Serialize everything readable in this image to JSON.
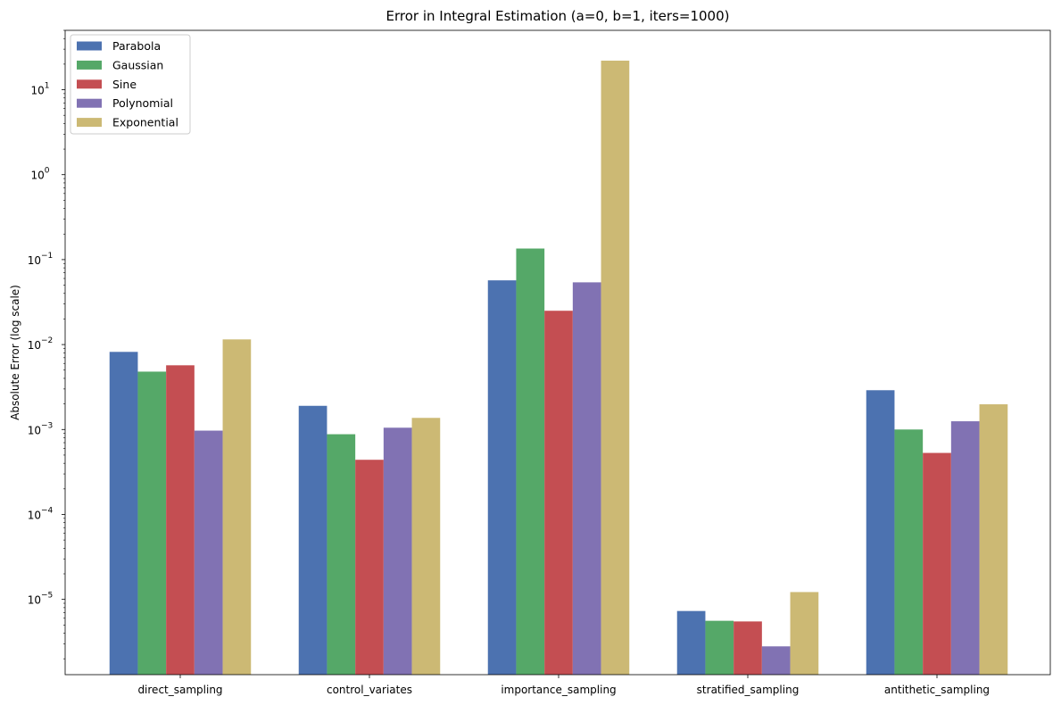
{
  "chart_data": {
    "type": "bar",
    "title": "Error in Integral Estimation (a=0, b=1, iters=1000)",
    "xlabel": "",
    "ylabel": "Absolute Error (log scale)",
    "yscale": "log",
    "ylim": [
      1.3e-06,
      50
    ],
    "yticks": [
      {
        "value": 1e-05,
        "base": "10",
        "exp": "−5"
      },
      {
        "value": 0.0001,
        "base": "10",
        "exp": "−4"
      },
      {
        "value": 0.001,
        "base": "10",
        "exp": "−3"
      },
      {
        "value": 0.01,
        "base": "10",
        "exp": "−2"
      },
      {
        "value": 0.1,
        "base": "10",
        "exp": "−1"
      },
      {
        "value": 1,
        "base": "10",
        "exp": "0"
      },
      {
        "value": 10,
        "base": "10",
        "exp": "1"
      }
    ],
    "grid": false,
    "legend_position": "top-left",
    "categories": [
      "direct_sampling",
      "control_variates",
      "importance_sampling",
      "stratified_sampling",
      "antithetic_sampling"
    ],
    "series": [
      {
        "name": "Parabola",
        "color": "#4c72b0",
        "values": [
          0.0082,
          0.0019,
          0.057,
          7.3e-06,
          0.0029
        ]
      },
      {
        "name": "Gaussian",
        "color": "#55a868",
        "values": [
          0.0048,
          0.00088,
          0.135,
          5.6e-06,
          0.001
        ]
      },
      {
        "name": "Sine",
        "color": "#c44e52",
        "values": [
          0.0057,
          0.00044,
          0.025,
          5.5e-06,
          0.00053
        ]
      },
      {
        "name": "Polynomial",
        "color": "#8172b3",
        "values": [
          0.00097,
          0.00105,
          0.054,
          2.8e-06,
          0.00125
        ]
      },
      {
        "name": "Exponential",
        "color": "#ccb974",
        "values": [
          0.0115,
          0.00137,
          22.0,
          1.22e-05,
          0.00198
        ]
      }
    ]
  }
}
